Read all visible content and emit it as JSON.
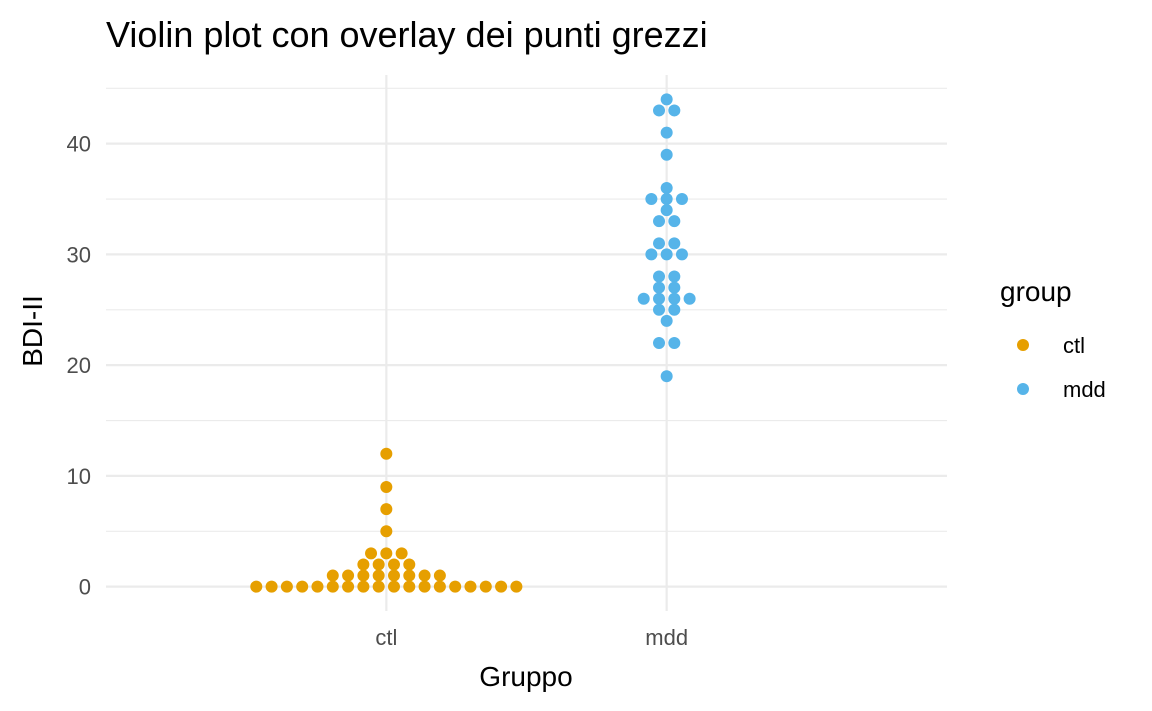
{
  "chart_data": {
    "type": "scatter",
    "title": "Violin plot con overlay dei punti grezzi",
    "xlabel": "Gruppo",
    "ylabel": "BDI-II",
    "categories": [
      "ctl",
      "mdd"
    ],
    "yticks": [
      0,
      10,
      20,
      30,
      40
    ],
    "ylim": [
      -2.2,
      46.2
    ],
    "grid": true,
    "legend": {
      "title": "group",
      "position": "right",
      "entries": [
        {
          "label": "ctl",
          "color": "#E69F00"
        },
        {
          "label": "mdd",
          "color": "#56B4E9"
        }
      ]
    },
    "series": [
      {
        "name": "ctl",
        "category": "ctl",
        "color": "#E69F00",
        "values": [
          0,
          0,
          0,
          0,
          0,
          0,
          0,
          0,
          0,
          0,
          0,
          0,
          0,
          0,
          0,
          0,
          0,
          0,
          1,
          1,
          1,
          1,
          1,
          1,
          1,
          1,
          2,
          2,
          2,
          2,
          3,
          3,
          3,
          5,
          7,
          9,
          12
        ]
      },
      {
        "name": "mdd",
        "category": "mdd",
        "color": "#56B4E9",
        "values": [
          19,
          22,
          22,
          24,
          25,
          25,
          26,
          26,
          26,
          26,
          27,
          27,
          28,
          28,
          30,
          30,
          30,
          31,
          31,
          33,
          33,
          34,
          35,
          35,
          35,
          36,
          39,
          41,
          43,
          43,
          44
        ]
      }
    ]
  }
}
